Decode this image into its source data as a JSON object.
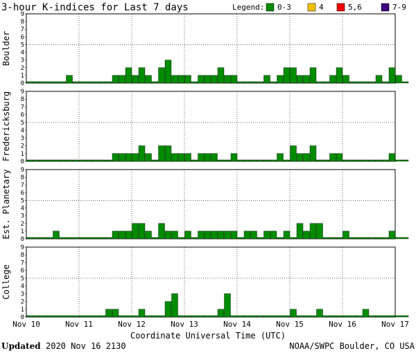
{
  "title": "3-hour K-indices for Last 7 days",
  "legend": {
    "label": "Legend:",
    "items": [
      {
        "label": "0-3",
        "color": "#008c00"
      },
      {
        "label": "4",
        "color": "#f0c000"
      },
      {
        "label": "5,6",
        "color": "#f00000"
      },
      {
        "label": "7-9",
        "color": "#400080"
      }
    ]
  },
  "footer": {
    "updated_label": "Updated",
    "updated_value": "2020 Nov 16 2130",
    "source": "NOAA/SWPC Boulder, CO USA"
  },
  "chart_data": {
    "type": "bar",
    "xlabel": "Coordinate Universal Time (UTC)",
    "x_ticks": [
      "Nov 10",
      "Nov 11",
      "Nov 12",
      "Nov 13",
      "Nov 14",
      "Nov 15",
      "Nov 16",
      "Nov 17"
    ],
    "ylim": [
      0,
      9
    ],
    "y_ticks": [
      0,
      1,
      2,
      3,
      4,
      5,
      6,
      7,
      8,
      9
    ],
    "bins_per_day": 8,
    "panels": [
      {
        "name": "Boulder",
        "values": [
          0,
          0,
          0,
          0,
          0,
          0,
          1,
          0,
          0,
          0,
          0,
          0,
          0,
          1,
          1,
          2,
          1,
          2,
          1,
          0,
          2,
          3,
          1,
          1,
          1,
          0,
          1,
          1,
          1,
          2,
          1,
          1,
          0,
          0,
          0,
          0,
          1,
          0,
          1,
          2,
          2,
          1,
          1,
          2,
          0,
          0,
          1,
          2,
          1,
          0,
          0,
          0,
          0,
          1,
          0,
          2,
          1,
          0
        ]
      },
      {
        "name": "Fredericksburg",
        "values": [
          0,
          0,
          0,
          0,
          0,
          0,
          0,
          0,
          0,
          0,
          0,
          0,
          0,
          1,
          1,
          1,
          1,
          2,
          1,
          0,
          2,
          2,
          1,
          1,
          1,
          0,
          1,
          1,
          1,
          0,
          0,
          1,
          0,
          0,
          0,
          0,
          0,
          0,
          1,
          0,
          2,
          1,
          1,
          2,
          0,
          0,
          1,
          1,
          0,
          0,
          0,
          0,
          0,
          0,
          0,
          1,
          0,
          0
        ]
      },
      {
        "name": "Est. Planetary",
        "values": [
          0,
          0,
          0,
          0,
          1,
          0,
          0,
          0,
          0,
          0,
          0,
          0,
          0,
          1,
          1,
          1,
          2,
          2,
          1,
          0,
          2,
          1,
          1,
          0,
          1,
          0,
          1,
          1,
          1,
          1,
          1,
          1,
          0,
          1,
          1,
          0,
          1,
          1,
          0,
          1,
          0,
          2,
          1,
          2,
          2,
          0,
          0,
          0,
          1,
          0,
          0,
          0,
          0,
          0,
          0,
          1,
          0,
          0
        ]
      },
      {
        "name": "College",
        "values": [
          0,
          0,
          0,
          0,
          0,
          0,
          0,
          0,
          0,
          0,
          0,
          0,
          1,
          1,
          0,
          0,
          0,
          1,
          0,
          0,
          0,
          2,
          3,
          0,
          0,
          0,
          0,
          0,
          0,
          1,
          3,
          0,
          0,
          0,
          0,
          0,
          0,
          0,
          0,
          0,
          1,
          0,
          0,
          0,
          1,
          0,
          0,
          0,
          0,
          0,
          0,
          1,
          0,
          0,
          0,
          0,
          0,
          0
        ]
      }
    ]
  }
}
